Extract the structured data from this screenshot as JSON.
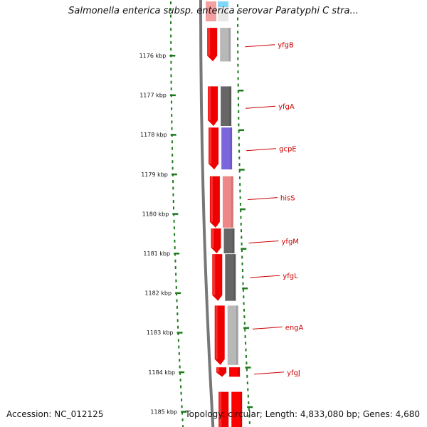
{
  "title": "Salmonella enterica subsp. enterica serovar Paratyphi C stra...",
  "footer": {
    "accession": "Accession: NC_012125",
    "stats": "Topology: circular; Length: 4,833,080 bp; Genes: 4,680"
  },
  "scale_labels": [
    "1176 kbp",
    "1177 kbp",
    "1178 kbp",
    "1179 kbp",
    "1180 kbp",
    "1181 kbp",
    "1182 kbp",
    "1183 kbp",
    "1184 kbp",
    "1185 kbp"
  ],
  "genes": [
    {
      "name": "yfgB",
      "start_kbp": 1175.3,
      "end_kbp": 1176.15,
      "strand": "+",
      "color": "#b8b8b8",
      "label": true
    },
    {
      "name": "yfgA",
      "start_kbp": 1176.78,
      "end_kbp": 1177.78,
      "strand": "+",
      "color": "#666666",
      "label": true
    },
    {
      "name": "gcpE",
      "start_kbp": 1177.82,
      "end_kbp": 1178.88,
      "strand": "+",
      "color": "#7b66dd",
      "label": true
    },
    {
      "name": "hisS",
      "start_kbp": 1179.05,
      "end_kbp": 1180.35,
      "strand": "+",
      "color": "#ee8888",
      "label": true
    },
    {
      "name": "yfgM",
      "start_kbp": 1180.37,
      "end_kbp": 1181.0,
      "strand": "+",
      "color": "#666666",
      "label": true
    },
    {
      "name": "yfgL",
      "start_kbp": 1181.02,
      "end_kbp": 1182.2,
      "strand": "+",
      "color": "#666666",
      "label": true
    },
    {
      "name": "engA",
      "start_kbp": 1182.32,
      "end_kbp": 1183.82,
      "strand": "+",
      "color": "#b8b8b8",
      "label": true
    },
    {
      "name": "yfgJ",
      "start_kbp": 1183.88,
      "end_kbp": 1184.12,
      "strand": "+",
      "color": "#ff0000",
      "label": true
    },
    {
      "name": "",
      "start_kbp": 1184.5,
      "end_kbp": 1185.6,
      "strand": "+",
      "color": "#ff0000",
      "label": false
    }
  ],
  "colors": {
    "strand_forward": "#ee0000",
    "backbone": "#777777",
    "scale_ticks": "#1c7a1c",
    "gene_label": "#cc0000",
    "top_fragment_red": "#f5a0a0",
    "top_fragment_blue": "#7fd6f5"
  }
}
